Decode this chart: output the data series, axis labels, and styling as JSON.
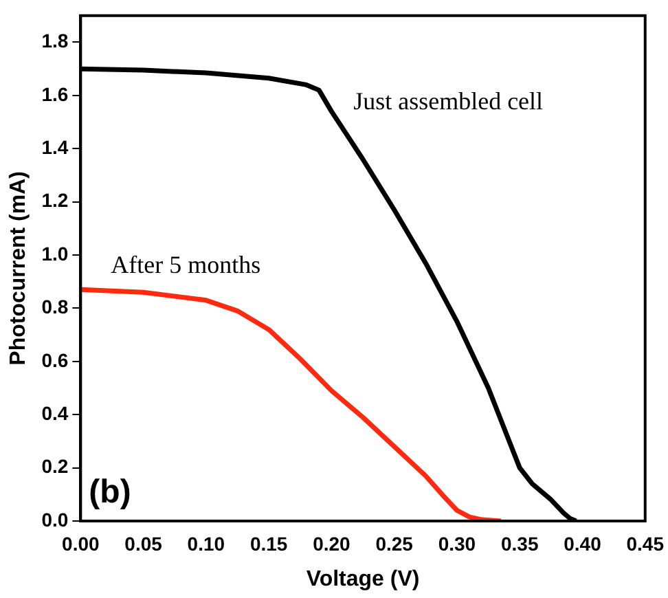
{
  "chart_data": {
    "type": "line",
    "xlabel": "Voltage (V)",
    "ylabel": "Photocurrent (mA)",
    "annotations": [
      "(b)"
    ],
    "xlim": [
      0,
      0.45
    ],
    "ylim": [
      0,
      1.9
    ],
    "xticks": [
      {
        "value": 0,
        "label": "0.00"
      },
      {
        "value": 0.05,
        "label": "0.05"
      },
      {
        "value": 0.1,
        "label": "0.10"
      },
      {
        "value": 0.15,
        "label": "0.15"
      },
      {
        "value": 0.2,
        "label": "0.20"
      },
      {
        "value": 0.25,
        "label": "0.25"
      },
      {
        "value": 0.3,
        "label": "0.30"
      },
      {
        "value": 0.35,
        "label": "0.35"
      },
      {
        "value": 0.4,
        "label": "0.40"
      },
      {
        "value": 0.45,
        "label": "0.45"
      }
    ],
    "yticks": [
      {
        "value": 0,
        "label": "0.0"
      },
      {
        "value": 0.2,
        "label": "0.2"
      },
      {
        "value": 0.4,
        "label": "0.4"
      },
      {
        "value": 0.6,
        "label": "0.6"
      },
      {
        "value": 0.8,
        "label": "0.8"
      },
      {
        "value": 1,
        "label": "1.0"
      },
      {
        "value": 1.2,
        "label": "1.2"
      },
      {
        "value": 1.4,
        "label": "1.4"
      },
      {
        "value": 1.6,
        "label": "1.6"
      },
      {
        "value": 1.8,
        "label": "1.8"
      }
    ],
    "grid": false,
    "legend": false,
    "marker": "none",
    "line_style": "solid",
    "series": [
      {
        "name": "Just assembled cell",
        "color": "#000000",
        "x": [
          0,
          0.05,
          0.1,
          0.15,
          0.18,
          0.19,
          0.2,
          0.225,
          0.25,
          0.275,
          0.3,
          0.325,
          0.34,
          0.35,
          0.36,
          0.375,
          0.385,
          0.39,
          0.395
        ],
        "values": [
          1.7,
          1.695,
          1.685,
          1.665,
          1.64,
          1.62,
          1.54,
          1.36,
          1.17,
          0.97,
          0.75,
          0.5,
          0.32,
          0.2,
          0.14,
          0.08,
          0.03,
          0.01,
          0
        ]
      },
      {
        "name": "After 5 months",
        "color": "#ff2a10",
        "x": [
          0,
          0.05,
          0.1,
          0.125,
          0.15,
          0.175,
          0.2,
          0.225,
          0.25,
          0.275,
          0.29,
          0.3,
          0.31,
          0.32,
          0.335
        ],
        "values": [
          0.87,
          0.86,
          0.83,
          0.79,
          0.72,
          0.61,
          0.49,
          0.39,
          0.28,
          0.17,
          0.09,
          0.04,
          0.015,
          0.005,
          0
        ]
      }
    ]
  }
}
